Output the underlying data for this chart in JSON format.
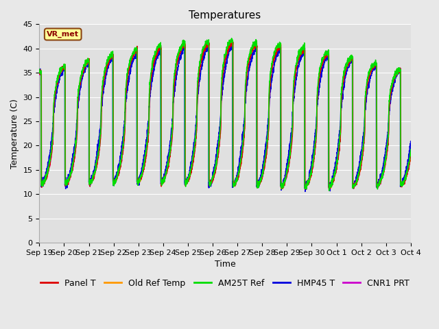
{
  "title": "Temperatures",
  "xlabel": "Time",
  "ylabel": "Temperature (C)",
  "annotation": "VR_met",
  "ylim": [
    0,
    45
  ],
  "n_days": 15.5,
  "x_tick_labels": [
    "Sep 19",
    "Sep 20",
    "Sep 21",
    "Sep 22",
    "Sep 23",
    "Sep 24",
    "Sep 25",
    "Sep 26",
    "Sep 27",
    "Sep 28",
    "Sep 29",
    "Sep 30",
    "Oct 1",
    "Oct 2",
    "Oct 3",
    "Oct 4"
  ],
  "series": [
    {
      "name": "Panel T",
      "color": "#dd0000"
    },
    {
      "name": "Old Ref Temp",
      "color": "#ff9900"
    },
    {
      "name": "AM25T Ref",
      "color": "#00dd00"
    },
    {
      "name": "HMP45 T",
      "color": "#0000dd"
    },
    {
      "name": "CNR1 PRT",
      "color": "#cc00cc"
    }
  ],
  "bg_outer": "#e8e8e8",
  "bg_inner": "#e0e0e0",
  "grid_color": "#ffffff",
  "title_fontsize": 11,
  "label_fontsize": 9,
  "tick_fontsize": 8,
  "min_temp": 10.0,
  "max_temp_early": 35.0,
  "max_temp_late": 41.0,
  "seed": 12
}
